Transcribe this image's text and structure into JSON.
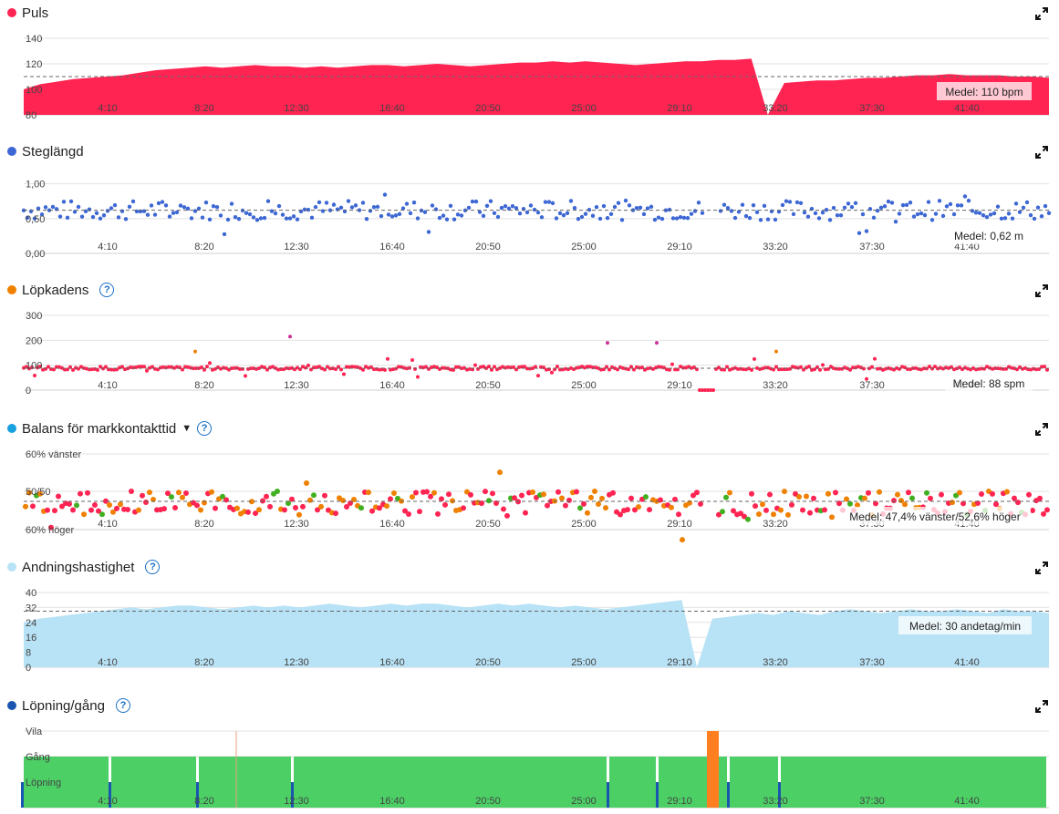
{
  "x_ticks": [
    "4:10",
    "8:20",
    "12:30",
    "16:40",
    "20:50",
    "25:00",
    "29:10",
    "33:20",
    "37:30",
    "41:40"
  ],
  "colors": {
    "puls": "#ff2452",
    "steglangd": "#3d67d4",
    "lopkadens": "#f08000",
    "balans": "#18a0e0",
    "andning": "#b8e2f5",
    "lopning": "#1a56b0",
    "walk_green": "#4cd066",
    "rest_orange": "#ff7f20"
  },
  "chart_data": [
    {
      "id": "puls",
      "type": "area",
      "title": "Puls",
      "y_ticks": [
        "80",
        "100",
        "120",
        "140"
      ],
      "ylim": [
        80,
        140
      ],
      "mean": 110,
      "mean_label": "Medel: 110 bpm",
      "series": [
        {
          "values": [
            100,
            104,
            106,
            108,
            109,
            110,
            111,
            113,
            115,
            116,
            117,
            118,
            117,
            118,
            119,
            118,
            118,
            117,
            118,
            117,
            118,
            119,
            119,
            118,
            119,
            120,
            119,
            118,
            119,
            120,
            121,
            121,
            122,
            121,
            122,
            121,
            120,
            119,
            120,
            121,
            122,
            122,
            123,
            123,
            124,
            80,
            105,
            106,
            107,
            107,
            108,
            109,
            109,
            110,
            111,
            111,
            112,
            111,
            111,
            111,
            110,
            110,
            109
          ]
        }
      ]
    },
    {
      "id": "steglangd",
      "type": "scatter",
      "title": "Steglängd",
      "y_ticks": [
        "0,00",
        "0,50",
        "1,00"
      ],
      "ylim": [
        0,
        1.1
      ],
      "mean": 0.62,
      "mean_label": "Medel: 0,62 m"
    },
    {
      "id": "lopkadens",
      "type": "scatter",
      "title": "Löpkadens",
      "y_ticks": [
        "0",
        "100",
        "200",
        "300"
      ],
      "ylim": [
        0,
        300
      ],
      "mean": 88,
      "mean_label": "Medel: 88 spm"
    },
    {
      "id": "balans",
      "type": "scatter",
      "title": "Balans för markkontakttid",
      "y_ticks": [
        "60% höger",
        "50/50",
        "60% vänster"
      ],
      "mean_label": "Medel: 47,4% vänster/52,6% höger"
    },
    {
      "id": "andning",
      "type": "area",
      "title": "Andningshastighet",
      "y_ticks": [
        "0",
        "8",
        "16",
        "24",
        "32",
        "40"
      ],
      "ylim": [
        0,
        40
      ],
      "mean": 30,
      "mean_label": "Medel: 30 andetag/min",
      "series": [
        {
          "values": [
            24,
            26,
            27,
            28,
            29,
            30,
            31,
            32,
            31,
            32,
            33,
            33,
            32,
            31,
            32,
            33,
            32,
            33,
            32,
            33,
            34,
            33,
            32,
            33,
            34,
            33,
            34,
            34,
            33,
            32,
            33,
            34,
            33,
            34,
            33,
            32,
            33,
            32,
            31,
            32,
            33,
            34,
            35,
            36,
            0,
            26,
            27,
            28,
            29,
            28,
            30,
            29,
            28,
            30,
            31,
            30,
            29,
            30,
            31,
            30,
            30,
            31,
            30,
            29,
            31,
            30,
            30,
            29
          ]
        }
      ]
    },
    {
      "id": "lopning",
      "type": "bar",
      "title": "Löpning/gång",
      "y_ticks": [
        "Löpning",
        "Gång",
        "Vila"
      ]
    }
  ]
}
